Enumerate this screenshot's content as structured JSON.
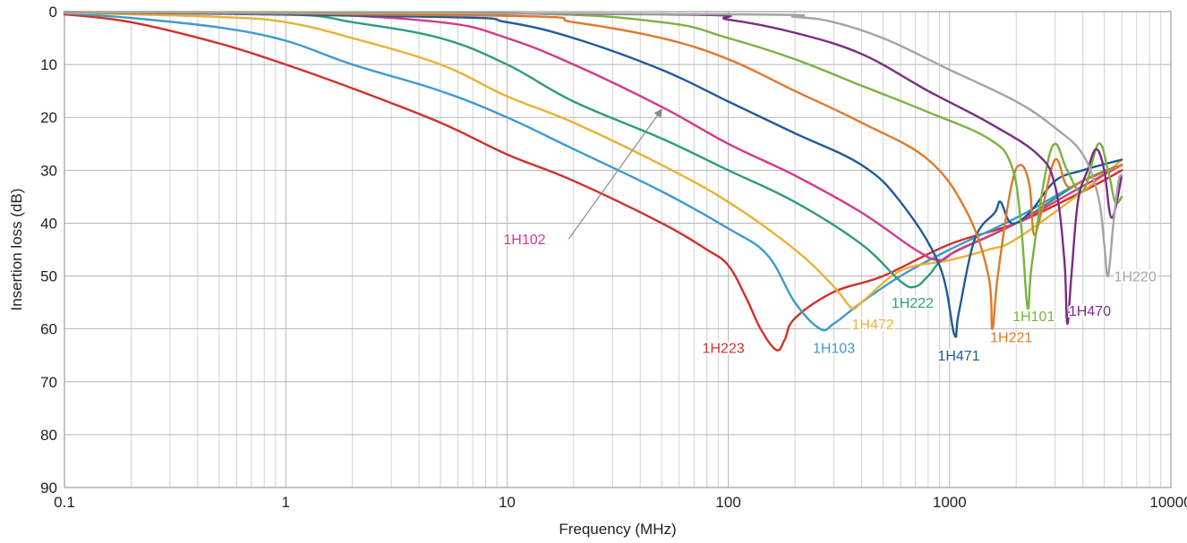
{
  "chart_data": {
    "type": "line",
    "xlabel": "Frequency (MHz)",
    "ylabel": "Insertion loss (dB)",
    "x_scale": "log",
    "xlim": [
      0.1,
      10000
    ],
    "ylim": [
      0,
      90
    ],
    "y_inverted": true,
    "grid": true,
    "x_ticks": [
      "0.1",
      "1",
      "10",
      "100",
      "1000",
      "10000"
    ],
    "y_ticks": [
      "0",
      "10",
      "20",
      "30",
      "40",
      "50",
      "60",
      "70",
      "80",
      "90"
    ],
    "series": [
      {
        "name": "1H223",
        "color": "#d0302c",
        "points": [
          [
            0.1,
            0.5
          ],
          [
            0.2,
            2
          ],
          [
            0.5,
            6
          ],
          [
            1,
            10
          ],
          [
            2,
            14.5
          ],
          [
            5,
            21
          ],
          [
            10,
            27
          ],
          [
            20,
            32
          ],
          [
            50,
            40
          ],
          [
            80,
            45
          ],
          [
            100,
            48
          ],
          [
            120,
            54
          ],
          [
            140,
            60
          ],
          [
            165,
            64
          ],
          [
            180,
            62
          ],
          [
            200,
            58
          ],
          [
            300,
            53
          ],
          [
            500,
            50
          ],
          [
            1000,
            44
          ],
          [
            2000,
            40
          ],
          [
            4000,
            34
          ],
          [
            6000,
            30
          ]
        ]
      },
      {
        "name": "1H103",
        "color": "#3c9ad2",
        "points": [
          [
            0.1,
            0.3
          ],
          [
            0.2,
            1.2
          ],
          [
            0.5,
            3
          ],
          [
            1,
            5.5
          ],
          [
            2,
            10
          ],
          [
            5,
            15
          ],
          [
            10,
            20
          ],
          [
            20,
            26
          ],
          [
            50,
            34
          ],
          [
            100,
            41
          ],
          [
            150,
            46
          ],
          [
            200,
            55
          ],
          [
            260,
            60
          ],
          [
            300,
            59
          ],
          [
            400,
            55
          ],
          [
            600,
            50
          ],
          [
            1000,
            45
          ],
          [
            2000,
            39
          ],
          [
            4000,
            32
          ],
          [
            6000,
            29
          ]
        ]
      },
      {
        "name": "1H472",
        "color": "#eab135",
        "points": [
          [
            0.1,
            0.2
          ],
          [
            0.5,
            1
          ],
          [
            1,
            2
          ],
          [
            2,
            5
          ],
          [
            5,
            10
          ],
          [
            10,
            16
          ],
          [
            20,
            21
          ],
          [
            50,
            29
          ],
          [
            100,
            36
          ],
          [
            200,
            45
          ],
          [
            300,
            52
          ],
          [
            360,
            56
          ],
          [
            400,
            55
          ],
          [
            600,
            49
          ],
          [
            1000,
            47
          ],
          [
            1500,
            45
          ],
          [
            2000,
            43
          ],
          [
            4000,
            34
          ],
          [
            6000,
            28
          ]
        ]
      },
      {
        "name": "1H222",
        "color": "#2d9b80",
        "points": [
          [
            0.1,
            0.1
          ],
          [
            1,
            0.5
          ],
          [
            2,
            2
          ],
          [
            5,
            5
          ],
          [
            10,
            10
          ],
          [
            20,
            17
          ],
          [
            50,
            24
          ],
          [
            100,
            30
          ],
          [
            200,
            36
          ],
          [
            400,
            44
          ],
          [
            600,
            51
          ],
          [
            700,
            52
          ],
          [
            800,
            50
          ],
          [
            1000,
            46
          ],
          [
            2000,
            40
          ],
          [
            4000,
            32
          ],
          [
            6000,
            29
          ]
        ]
      },
      {
        "name": "1H102",
        "color": "#d43a87",
        "points": [
          [
            0.1,
            0.1
          ],
          [
            1,
            0.3
          ],
          [
            5,
            2
          ],
          [
            10,
            5
          ],
          [
            20,
            10
          ],
          [
            50,
            18
          ],
          [
            100,
            25
          ],
          [
            200,
            31
          ],
          [
            400,
            38
          ],
          [
            700,
            45
          ],
          [
            900,
            47
          ],
          [
            1100,
            45
          ],
          [
            2000,
            40
          ],
          [
            4000,
            33
          ],
          [
            6000,
            29
          ]
        ]
      },
      {
        "name": "1H471",
        "color": "#1f5b99",
        "points": [
          [
            0.1,
            0.1
          ],
          [
            5,
            1
          ],
          [
            10,
            2
          ],
          [
            20,
            5
          ],
          [
            50,
            11
          ],
          [
            100,
            17
          ],
          [
            200,
            23
          ],
          [
            400,
            29
          ],
          [
            600,
            36
          ],
          [
            900,
            48
          ],
          [
            1050,
            61
          ],
          [
            1100,
            57
          ],
          [
            1300,
            43
          ],
          [
            1600,
            38
          ],
          [
            1700,
            36
          ],
          [
            1900,
            40
          ],
          [
            2300,
            38
          ],
          [
            3000,
            32
          ],
          [
            4000,
            30
          ],
          [
            6000,
            28
          ]
        ]
      },
      {
        "name": "1H221",
        "color": "#e0782b",
        "points": [
          [
            0.1,
            0.1
          ],
          [
            10,
            0.8
          ],
          [
            20,
            2
          ],
          [
            50,
            5
          ],
          [
            100,
            9
          ],
          [
            200,
            15
          ],
          [
            400,
            21
          ],
          [
            800,
            28
          ],
          [
            1200,
            38
          ],
          [
            1500,
            50
          ],
          [
            1560,
            60
          ],
          [
            1650,
            50
          ],
          [
            1900,
            33
          ],
          [
            2100,
            29
          ],
          [
            2300,
            33
          ],
          [
            2400,
            42
          ],
          [
            2600,
            38
          ],
          [
            3000,
            28
          ],
          [
            3400,
            33
          ],
          [
            4000,
            32
          ],
          [
            6000,
            29
          ]
        ]
      },
      {
        "name": "1H101",
        "color": "#78b33f",
        "points": [
          [
            0.1,
            0.1
          ],
          [
            10,
            0.3
          ],
          [
            50,
            2
          ],
          [
            100,
            5
          ],
          [
            200,
            9
          ],
          [
            400,
            14
          ],
          [
            800,
            19
          ],
          [
            1500,
            24
          ],
          [
            1900,
            29
          ],
          [
            2100,
            40
          ],
          [
            2250,
            56
          ],
          [
            2350,
            48
          ],
          [
            2700,
            31
          ],
          [
            3000,
            25
          ],
          [
            3400,
            30
          ],
          [
            4000,
            34
          ],
          [
            4700,
            25
          ],
          [
            5200,
            30
          ],
          [
            5600,
            36
          ],
          [
            6000,
            35
          ]
        ]
      },
      {
        "name": "1H470",
        "color": "#7a2c86",
        "points": [
          [
            0.1,
            0.1
          ],
          [
            50,
            0.5
          ],
          [
            100,
            1.5
          ],
          [
            200,
            4
          ],
          [
            400,
            8
          ],
          [
            800,
            15
          ],
          [
            1500,
            21
          ],
          [
            2500,
            27
          ],
          [
            3000,
            33
          ],
          [
            3300,
            47
          ],
          [
            3400,
            59
          ],
          [
            3550,
            50
          ],
          [
            3800,
            36
          ],
          [
            4200,
            30
          ],
          [
            4600,
            26
          ],
          [
            5000,
            30
          ],
          [
            5400,
            39
          ],
          [
            6000,
            31
          ]
        ]
      },
      {
        "name": "1H220",
        "color": "#a4a4a4",
        "points": [
          [
            0.1,
            0.1
          ],
          [
            100,
            0.5
          ],
          [
            200,
            1
          ],
          [
            300,
            2
          ],
          [
            500,
            5
          ],
          [
            800,
            9
          ],
          [
            1000,
            11
          ],
          [
            2000,
            17
          ],
          [
            3000,
            22
          ],
          [
            4000,
            27
          ],
          [
            4700,
            35
          ],
          [
            5000,
            44
          ],
          [
            5200,
            50
          ],
          [
            5500,
            40
          ],
          [
            5800,
            32
          ],
          [
            6000,
            31
          ]
        ]
      }
    ],
    "labels": [
      {
        "series": "1H223",
        "text": "1H223",
        "x": 95,
        "y": 63.5
      },
      {
        "series": "1H103",
        "text": "1H103",
        "x": 300,
        "y": 63.5
      },
      {
        "series": "1H472",
        "text": "1H472",
        "x": 450,
        "y": 59
      },
      {
        "series": "1H222",
        "text": "1H222",
        "x": 680,
        "y": 55
      },
      {
        "series": "1H102",
        "text": "1H102",
        "x": 12,
        "y": 43
      },
      {
        "series": "1H471",
        "text": "1H471",
        "x": 1100,
        "y": 65
      },
      {
        "series": "1H221",
        "text": "1H221",
        "x": 1900,
        "y": 61.5
      },
      {
        "series": "1H101",
        "text": "1H101",
        "x": 2400,
        "y": 57.5
      },
      {
        "series": "1H470",
        "text": "1H470",
        "x": 4300,
        "y": 56.5
      },
      {
        "series": "1H220",
        "text": "1H220",
        "x": 6900,
        "y": 50
      }
    ],
    "annotation_arrow": {
      "series": "1H102",
      "from": [
        19,
        43
      ],
      "to": [
        50,
        18.5
      ]
    }
  }
}
